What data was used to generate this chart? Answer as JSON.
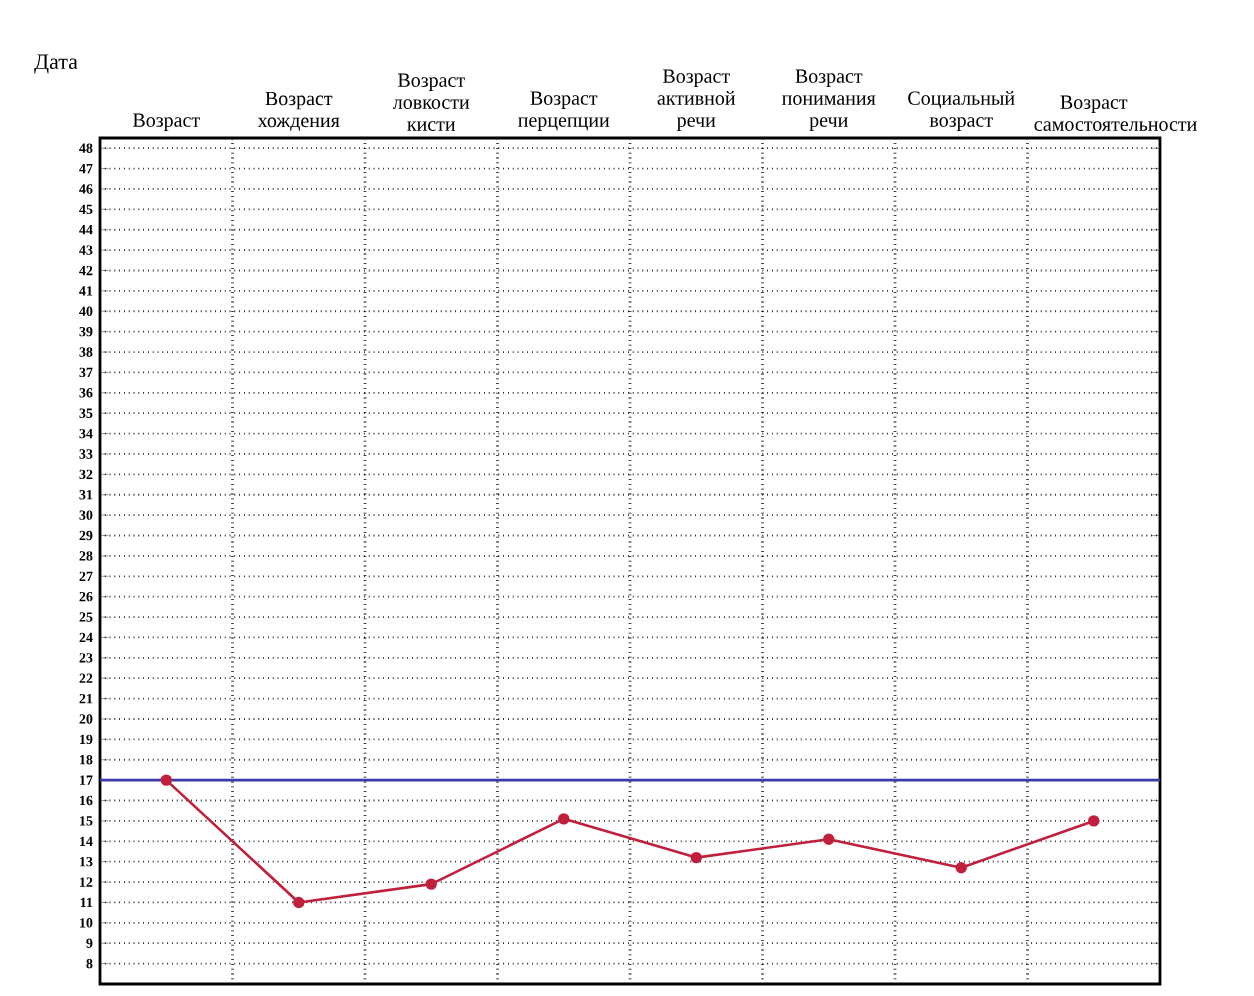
{
  "chart_data": {
    "type": "line",
    "categories": [
      "Возраст",
      "Возраст хождения",
      "Возраст ловкости кисти",
      "Возраст перцепции",
      "Возраст активной речи",
      "Возраст понимания речи",
      "Социальный возраст",
      "Возраст самостоятельности"
    ],
    "series": [
      {
        "color": "#c0203c",
        "values": [
          17,
          11,
          11.9,
          15.1,
          13.2,
          14.1,
          12.7,
          15.0
        ]
      }
    ],
    "ylim": [
      7,
      48.5
    ],
    "yticks": [
      8,
      9,
      10,
      11,
      12,
      13,
      14,
      15,
      16,
      17,
      18,
      19,
      20,
      21,
      22,
      23,
      24,
      25,
      26,
      27,
      28,
      29,
      30,
      31,
      32,
      33,
      34,
      35,
      36,
      37,
      38,
      39,
      40,
      41,
      42,
      43,
      44,
      45,
      46,
      47,
      48
    ],
    "ref_lines": [
      {
        "axis": "y",
        "value": 17,
        "color": "#3a3aa8"
      }
    ],
    "annotations": [
      "Дата"
    ],
    "grid": "y",
    "marker": "circle",
    "line_style": "solid"
  }
}
